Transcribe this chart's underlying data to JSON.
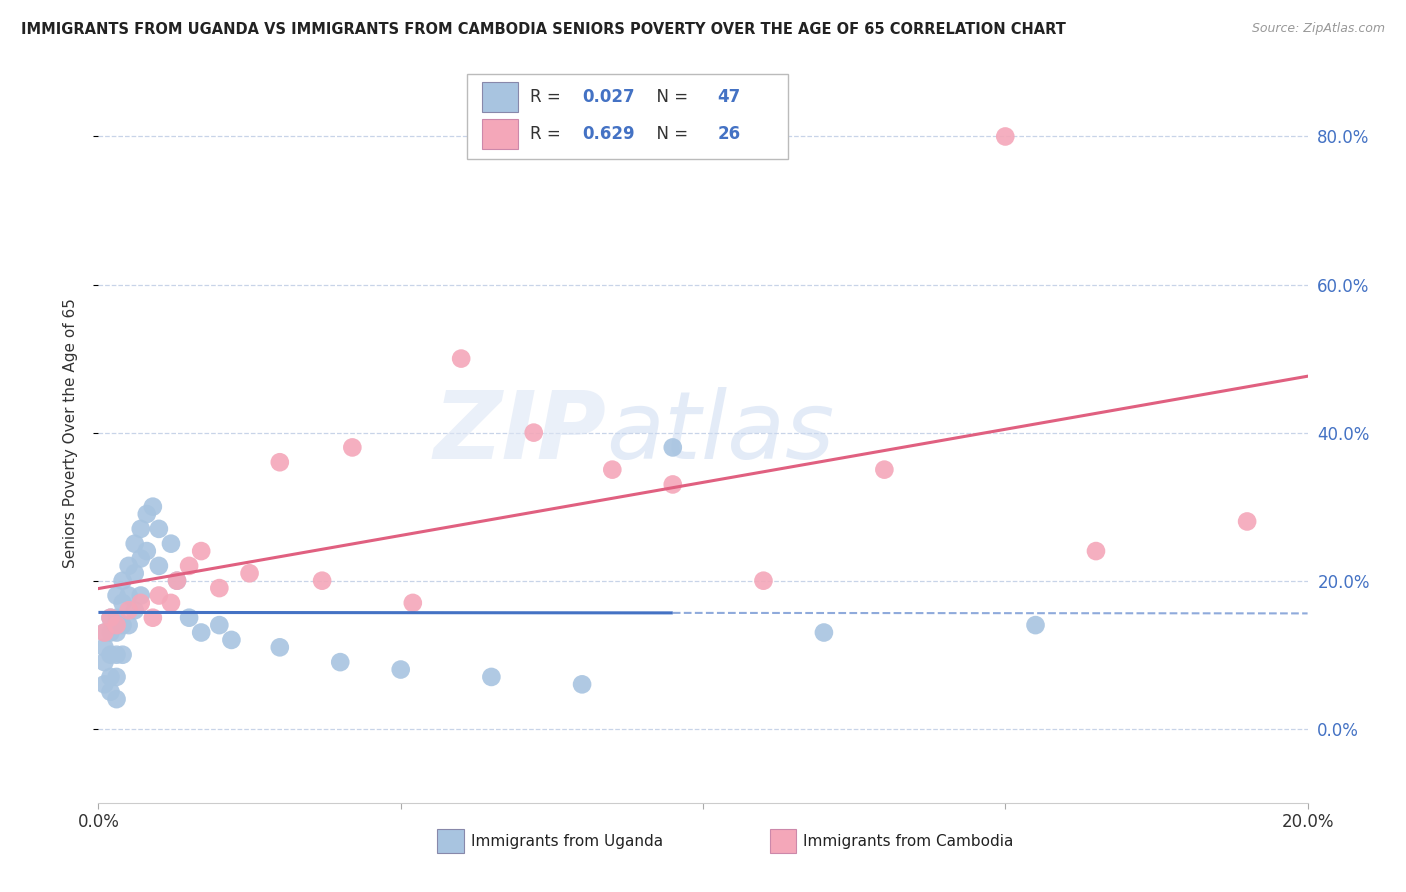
{
  "title": "IMMIGRANTS FROM UGANDA VS IMMIGRANTS FROM CAMBODIA SENIORS POVERTY OVER THE AGE OF 65 CORRELATION CHART",
  "source": "Source: ZipAtlas.com",
  "ylabel": "Seniors Poverty Over the Age of 65",
  "xlabel_uganda": "Immigrants from Uganda",
  "xlabel_cambodia": "Immigrants from Cambodia",
  "xlim": [
    0.0,
    0.2
  ],
  "ylim": [
    -0.1,
    0.9
  ],
  "yticks": [
    0.0,
    0.2,
    0.4,
    0.6,
    0.8
  ],
  "xticks": [
    0.0,
    0.05,
    0.1,
    0.15,
    0.2
  ],
  "uganda_color": "#a8c4e0",
  "cambodia_color": "#f4a7b9",
  "uganda_line_color": "#4472c4",
  "cambodia_line_color": "#e06080",
  "R_uganda": 0.027,
  "N_uganda": 47,
  "R_cambodia": 0.629,
  "N_cambodia": 26,
  "watermark_ZIP": "ZIP",
  "watermark_atlas": "atlas",
  "background_color": "#ffffff",
  "grid_color": "#c8d4e8",
  "uganda_x": [
    0.001,
    0.001,
    0.001,
    0.001,
    0.002,
    0.002,
    0.002,
    0.002,
    0.002,
    0.003,
    0.003,
    0.003,
    0.003,
    0.003,
    0.003,
    0.004,
    0.004,
    0.004,
    0.004,
    0.005,
    0.005,
    0.005,
    0.006,
    0.006,
    0.006,
    0.007,
    0.007,
    0.007,
    0.008,
    0.008,
    0.009,
    0.01,
    0.01,
    0.012,
    0.013,
    0.015,
    0.017,
    0.02,
    0.022,
    0.03,
    0.04,
    0.05,
    0.065,
    0.08,
    0.095,
    0.12,
    0.155
  ],
  "uganda_y": [
    0.13,
    0.11,
    0.09,
    0.06,
    0.15,
    0.13,
    0.1,
    0.07,
    0.05,
    0.18,
    0.15,
    0.13,
    0.1,
    0.07,
    0.04,
    0.2,
    0.17,
    0.14,
    0.1,
    0.22,
    0.18,
    0.14,
    0.25,
    0.21,
    0.16,
    0.27,
    0.23,
    0.18,
    0.29,
    0.24,
    0.3,
    0.27,
    0.22,
    0.25,
    0.2,
    0.15,
    0.13,
    0.14,
    0.12,
    0.11,
    0.09,
    0.08,
    0.07,
    0.06,
    0.38,
    0.13,
    0.14
  ],
  "cambodia_x": [
    0.001,
    0.002,
    0.003,
    0.005,
    0.007,
    0.009,
    0.01,
    0.012,
    0.013,
    0.015,
    0.017,
    0.02,
    0.025,
    0.03,
    0.037,
    0.042,
    0.052,
    0.06,
    0.072,
    0.085,
    0.095,
    0.11,
    0.13,
    0.15,
    0.165,
    0.19
  ],
  "cambodia_y": [
    0.13,
    0.15,
    0.14,
    0.16,
    0.17,
    0.15,
    0.18,
    0.17,
    0.2,
    0.22,
    0.24,
    0.19,
    0.21,
    0.36,
    0.2,
    0.38,
    0.17,
    0.5,
    0.4,
    0.35,
    0.33,
    0.2,
    0.35,
    0.8,
    0.24,
    0.28
  ]
}
